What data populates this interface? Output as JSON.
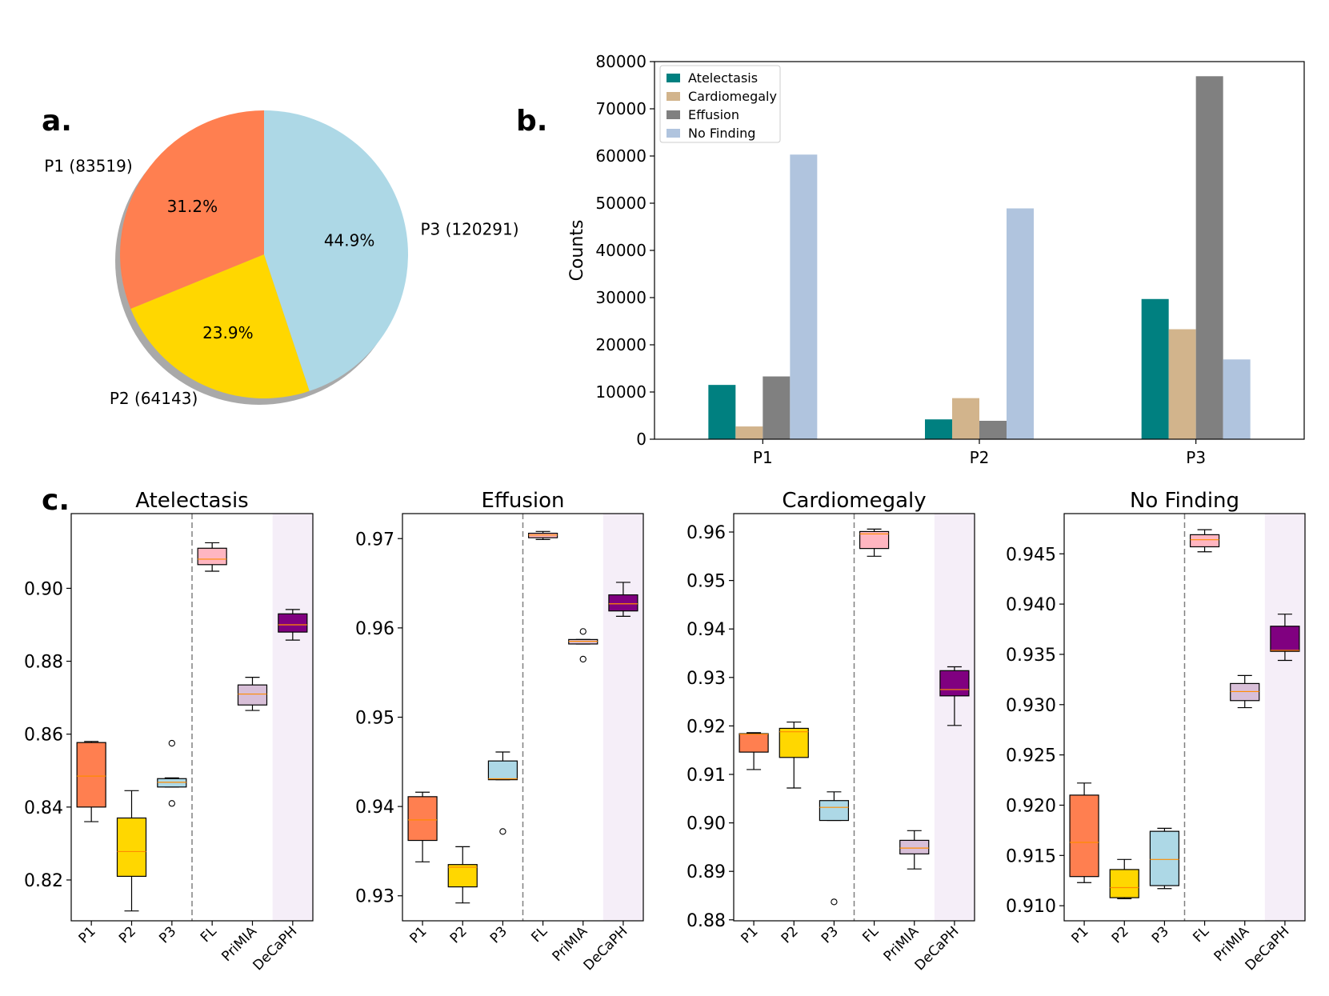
{
  "panel_labels": {
    "a": "a.",
    "b": "b.",
    "c": "c."
  },
  "chart_data": [
    {
      "type": "pie",
      "panel": "a",
      "labels": [
        "P1 (83519)",
        "P2 (64143)",
        "P3 (120291)"
      ],
      "values": [
        83519,
        64143,
        120291
      ],
      "percent_labels": [
        "31.2%",
        "23.9%",
        "44.9%"
      ],
      "colors": [
        "#ff7f50",
        "#ffd700",
        "#add8e6"
      ],
      "shadow": true
    },
    {
      "type": "bar",
      "panel": "b",
      "categories": [
        "P1",
        "P2",
        "P3"
      ],
      "series": [
        {
          "name": "Atelectasis",
          "color": "#008080",
          "values": [
            11500,
            4200,
            29700
          ]
        },
        {
          "name": "Cardiomegaly",
          "color": "#d2b48c",
          "values": [
            2700,
            8700,
            23300
          ]
        },
        {
          "name": "Effusion",
          "color": "#808080",
          "values": [
            13300,
            3900,
            76900
          ]
        },
        {
          "name": "No Finding",
          "color": "#b0c4de",
          "values": [
            60300,
            48900,
            16900
          ]
        }
      ],
      "ylabel": "Counts",
      "ylim": [
        0,
        80000
      ],
      "yticks": [
        0,
        10000,
        20000,
        30000,
        40000,
        50000,
        60000,
        70000,
        80000
      ],
      "legend": "top-left"
    },
    {
      "type": "box",
      "panel": "c",
      "title": "Atelectasis",
      "categories": [
        "P1",
        "P2",
        "P3",
        "FL",
        "PriMIA",
        "DeCaPH"
      ],
      "colors": [
        "#ff7f50",
        "#ffd700",
        "#add8e6",
        "#ffb6c1",
        "#d8bfd8",
        "#800080"
      ],
      "ylim": [
        0.8088,
        0.9205
      ],
      "yticks": [
        0.82,
        0.84,
        0.86,
        0.88,
        0.9
      ],
      "ytick_labels": [
        "0.82",
        "0.84",
        "0.86",
        "0.88",
        "0.90"
      ],
      "divider_after": "P3",
      "highlight": "DeCaPH",
      "boxes": [
        {
          "whislo": 0.836,
          "q1": 0.84,
          "med": 0.8485,
          "q3": 0.8577,
          "whishi": 0.858,
          "fliers": []
        },
        {
          "whislo": 0.8115,
          "q1": 0.821,
          "med": 0.8278,
          "q3": 0.837,
          "whishi": 0.8445,
          "fliers": []
        },
        {
          "whislo": 0.8455,
          "q1": 0.8455,
          "med": 0.8468,
          "q3": 0.8478,
          "whishi": 0.848,
          "fliers": [
            0.8575,
            0.841
          ]
        },
        {
          "whislo": 0.9047,
          "q1": 0.9065,
          "med": 0.908,
          "q3": 0.911,
          "whishi": 0.9125,
          "fliers": []
        },
        {
          "whislo": 0.8665,
          "q1": 0.868,
          "med": 0.871,
          "q3": 0.8735,
          "whishi": 0.8756,
          "fliers": []
        },
        {
          "whislo": 0.8858,
          "q1": 0.888,
          "med": 0.89,
          "q3": 0.893,
          "whishi": 0.8942,
          "fliers": []
        }
      ]
    },
    {
      "type": "box",
      "panel": "c",
      "title": "Effusion",
      "categories": [
        "P1",
        "P2",
        "P3",
        "FL",
        "PriMIA",
        "DeCaPH"
      ],
      "colors": [
        "#ff7f50",
        "#ffd700",
        "#add8e6",
        "#ffb6c1",
        "#d8bfd8",
        "#800080"
      ],
      "ylim": [
        0.9272,
        0.9728
      ],
      "yticks": [
        0.93,
        0.94,
        0.95,
        0.96,
        0.97
      ],
      "ytick_labels": [
        "0.93",
        "0.94",
        "0.95",
        "0.96",
        "0.97"
      ],
      "divider_after": "P3",
      "highlight": "DeCaPH",
      "boxes": [
        {
          "whislo": 0.9338,
          "q1": 0.9362,
          "med": 0.9385,
          "q3": 0.9411,
          "whishi": 0.9416,
          "fliers": []
        },
        {
          "whislo": 0.9292,
          "q1": 0.931,
          "med": 0.9332,
          "q3": 0.9335,
          "whishi": 0.9355,
          "fliers": []
        },
        {
          "whislo": 0.943,
          "q1": 0.943,
          "med": 0.9431,
          "q3": 0.9451,
          "whishi": 0.9461,
          "fliers": [
            0.9372
          ]
        },
        {
          "whislo": 0.9699,
          "q1": 0.9701,
          "med": 0.9704,
          "q3": 0.9706,
          "whishi": 0.9708,
          "fliers": []
        },
        {
          "whislo": 0.9582,
          "q1": 0.9582,
          "med": 0.9585,
          "q3": 0.9587,
          "whishi": 0.9587,
          "fliers": [
            0.9596,
            0.9565
          ]
        },
        {
          "whislo": 0.9613,
          "q1": 0.9619,
          "med": 0.9627,
          "q3": 0.9637,
          "whishi": 0.9651,
          "fliers": []
        }
      ]
    },
    {
      "type": "box",
      "panel": "c",
      "title": "Cardiomegaly",
      "categories": [
        "P1",
        "P2",
        "P3",
        "FL",
        "PriMIA",
        "DeCaPH"
      ],
      "colors": [
        "#ff7f50",
        "#ffd700",
        "#add8e6",
        "#ffb6c1",
        "#d8bfd8",
        "#800080"
      ],
      "ylim": [
        0.8798,
        0.9638
      ],
      "yticks": [
        0.88,
        0.89,
        0.9,
        0.91,
        0.92,
        0.93,
        0.94,
        0.95,
        0.96
      ],
      "ytick_labels": [
        "0.88",
        "0.89",
        "0.90",
        "0.91",
        "0.92",
        "0.93",
        "0.94",
        "0.95",
        "0.96"
      ],
      "divider_after": "P3",
      "highlight": "DeCaPH",
      "boxes": [
        {
          "whislo": 0.911,
          "q1": 0.9146,
          "med": 0.9183,
          "q3": 0.9184,
          "whishi": 0.9186,
          "fliers": []
        },
        {
          "whislo": 0.9072,
          "q1": 0.9135,
          "med": 0.9188,
          "q3": 0.9195,
          "whishi": 0.9208,
          "fliers": []
        },
        {
          "whislo": 0.9005,
          "q1": 0.9005,
          "med": 0.9032,
          "q3": 0.9046,
          "whishi": 0.9064,
          "fliers": [
            0.8837
          ]
        },
        {
          "whislo": 0.955,
          "q1": 0.9566,
          "med": 0.9596,
          "q3": 0.9601,
          "whishi": 0.9606,
          "fliers": []
        },
        {
          "whislo": 0.8905,
          "q1": 0.8936,
          "med": 0.8948,
          "q3": 0.8964,
          "whishi": 0.8984,
          "fliers": []
        },
        {
          "whislo": 0.9201,
          "q1": 0.9262,
          "med": 0.9275,
          "q3": 0.9314,
          "whishi": 0.9322,
          "fliers": []
        }
      ]
    },
    {
      "type": "box",
      "panel": "c",
      "title": "No Finding",
      "categories": [
        "P1",
        "P2",
        "P3",
        "FL",
        "PriMIA",
        "DeCaPH"
      ],
      "colors": [
        "#ff7f50",
        "#ffd700",
        "#add8e6",
        "#ffb6c1",
        "#d8bfd8",
        "#800080"
      ],
      "ylim": [
        0.9085,
        0.949
      ],
      "yticks": [
        0.91,
        0.915,
        0.92,
        0.925,
        0.93,
        0.935,
        0.94,
        0.945
      ],
      "ytick_labels": [
        "0.910",
        "0.915",
        "0.920",
        "0.925",
        "0.930",
        "0.935",
        "0.940",
        "0.945"
      ],
      "divider_after": "P3",
      "highlight": "DeCaPH",
      "boxes": [
        {
          "whislo": 0.9123,
          "q1": 0.9129,
          "med": 0.9163,
          "q3": 0.921,
          "whishi": 0.9222,
          "fliers": []
        },
        {
          "whislo": 0.9107,
          "q1": 0.9108,
          "med": 0.9118,
          "q3": 0.9136,
          "whishi": 0.9146,
          "fliers": []
        },
        {
          "whislo": 0.9117,
          "q1": 0.912,
          "med": 0.9146,
          "q3": 0.9174,
          "whishi": 0.9177,
          "fliers": []
        },
        {
          "whislo": 0.9452,
          "q1": 0.9457,
          "med": 0.9464,
          "q3": 0.9469,
          "whishi": 0.9474,
          "fliers": []
        },
        {
          "whislo": 0.9297,
          "q1": 0.9304,
          "med": 0.9313,
          "q3": 0.9321,
          "whishi": 0.9329,
          "fliers": []
        },
        {
          "whislo": 0.9344,
          "q1": 0.9353,
          "med": 0.9354,
          "q3": 0.9378,
          "whishi": 0.939,
          "fliers": []
        }
      ]
    }
  ]
}
